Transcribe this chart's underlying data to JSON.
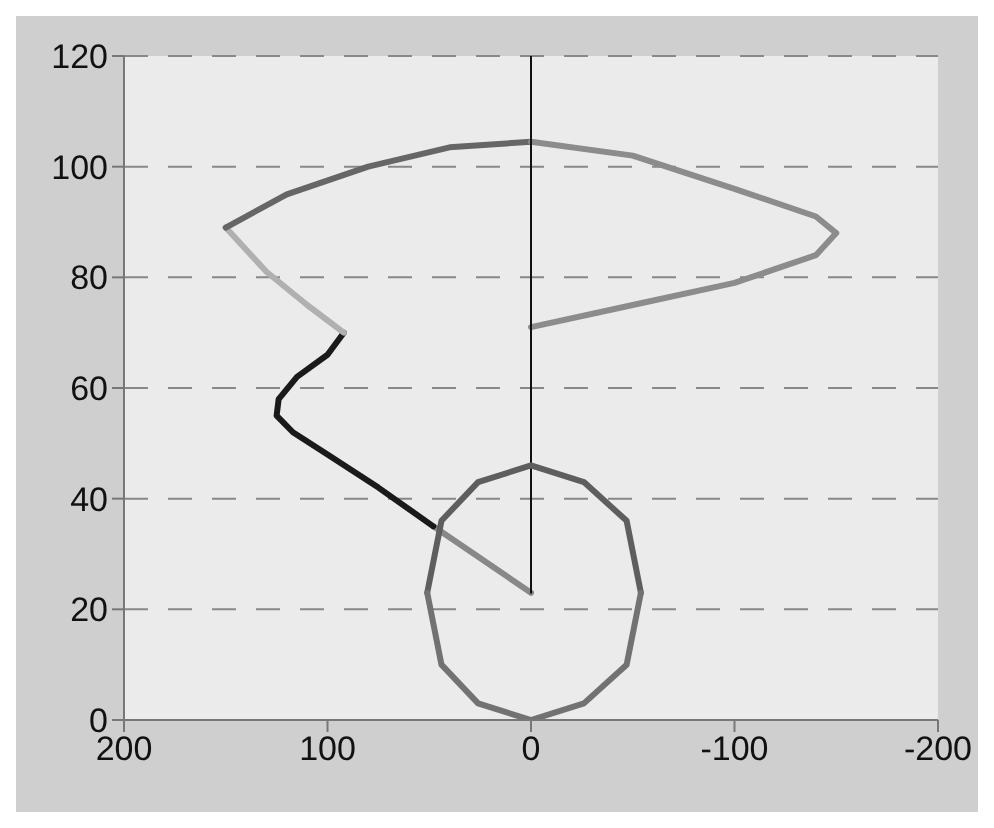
{
  "chart_data": {
    "type": "line",
    "xlim": [
      200,
      -200
    ],
    "ylim": [
      0,
      120
    ],
    "xticks": [
      200,
      100,
      0,
      -100,
      -200
    ],
    "yticks": [
      0,
      20,
      40,
      60,
      80,
      100,
      120
    ],
    "grid": "y",
    "marker": "none",
    "line_style": "solid",
    "legend": false,
    "series": [
      {
        "color": "#888888",
        "x": [
          0,
          48
        ],
        "values": [
          23,
          35
        ]
      },
      {
        "color": "#1a1a1a",
        "x": [
          48,
          75,
          100,
          117,
          125,
          124,
          115,
          100,
          92
        ],
        "values": [
          35,
          42,
          48,
          52,
          55,
          58,
          62,
          66,
          70
        ]
      },
      {
        "color": "#b0b0b0",
        "x": [
          92,
          110,
          130,
          150
        ],
        "values": [
          70,
          75,
          81,
          89
        ]
      },
      {
        "color": "#666666",
        "x": [
          150,
          120,
          80,
          40,
          0
        ],
        "values": [
          89,
          95,
          100,
          103.5,
          104.5
        ]
      },
      {
        "color": "#8c8c8c",
        "x": [
          0,
          -50,
          -100,
          -140,
          -150,
          -140,
          -100,
          -50,
          0
        ],
        "values": [
          104.5,
          102,
          96,
          91,
          88,
          84,
          79,
          75,
          71
        ]
      },
      {
        "color": "#111111",
        "x": [
          0,
          0
        ],
        "values": [
          23,
          120
        ]
      },
      {
        "color": "#5e5e5e",
        "x": [
          51,
          44,
          26,
          0,
          -26,
          -47,
          -54
        ],
        "values": [
          23,
          36,
          43,
          46,
          43,
          36,
          23
        ]
      },
      {
        "color": "#727272",
        "x": [
          51,
          44,
          26,
          0,
          -26,
          -47,
          -54
        ],
        "values": [
          23,
          10,
          3,
          0,
          3,
          10,
          23
        ]
      }
    ]
  }
}
